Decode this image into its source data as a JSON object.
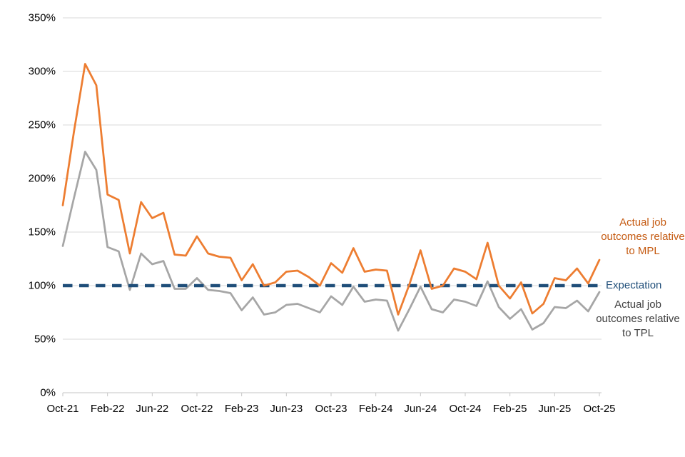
{
  "chart_data": {
    "type": "line",
    "x": [
      "Oct-21",
      "Nov-21",
      "Dec-21",
      "Jan-22",
      "Feb-22",
      "Mar-22",
      "Apr-22",
      "May-22",
      "Jun-22",
      "Jul-22",
      "Aug-22",
      "Sep-22",
      "Oct-22",
      "Nov-22",
      "Dec-22",
      "Jan-23",
      "Feb-23",
      "Mar-23",
      "Apr-23",
      "May-23",
      "Jun-23",
      "Jul-23",
      "Aug-23",
      "Sep-23",
      "Oct-23",
      "Nov-23",
      "Dec-23",
      "Jan-24",
      "Feb-24",
      "Mar-24",
      "Apr-24",
      "May-24",
      "Jun-24",
      "Jul-24",
      "Aug-24",
      "Sep-24",
      "Oct-24",
      "Nov-24",
      "Dec-24",
      "Jan-25",
      "Feb-25",
      "Mar-25",
      "Apr-25",
      "May-25",
      "Jun-25",
      "Jul-25",
      "Aug-25",
      "Sep-25",
      "Oct-25"
    ],
    "xtick_labels": [
      "Oct-21",
      "Feb-22",
      "Jun-22",
      "Oct-22",
      "Feb-23",
      "Jun-23",
      "Oct-23",
      "Feb-24",
      "Jun-24",
      "Oct-24",
      "Feb-25",
      "Jun-25",
      "Oct-25"
    ],
    "xtick_every": 4,
    "series": [
      {
        "name": "Actual job outcomes relative to MPL",
        "color": "#ED7D31",
        "style": "solid",
        "values": [
          175,
          244,
          307,
          287,
          185,
          180,
          130,
          178,
          163,
          168,
          129,
          128,
          146,
          130,
          127,
          126,
          105,
          120,
          100,
          103,
          113,
          114,
          108,
          100,
          121,
          112,
          135,
          113,
          115,
          114,
          73,
          101,
          133,
          97,
          100,
          116,
          113,
          106,
          140,
          100,
          88,
          103,
          74,
          83,
          107,
          105,
          116,
          102,
          124
        ]
      },
      {
        "name": "Actual job outcomes relative to TPL",
        "color": "#A6A6A6",
        "style": "solid",
        "values": [
          137,
          182,
          225,
          208,
          136,
          132,
          96,
          130,
          120,
          123,
          97,
          97,
          107,
          96,
          95,
          93,
          77,
          89,
          73,
          75,
          82,
          83,
          79,
          75,
          90,
          82,
          99,
          85,
          87,
          86,
          58,
          78,
          99,
          78,
          75,
          87,
          85,
          81,
          104,
          80,
          69,
          78,
          59,
          65,
          80,
          79,
          86,
          76,
          94
        ]
      },
      {
        "name": "Expectation",
        "color": "#1F4E79",
        "style": "dashed",
        "constant_value": 100
      }
    ],
    "title": "",
    "xlabel": "",
    "ylabel": "",
    "ylim": [
      0,
      350
    ],
    "ytick_step": 50,
    "ytick_suffix": "%",
    "grid": "horizontal-only",
    "legend_position": "right-annotations"
  },
  "annotations": {
    "mpl_label": "Actual job outcomes relative to MPL",
    "expectation_label": "Expectation",
    "tpl_label": "Actual job outcomes relative to TPL"
  },
  "colors": {
    "mpl_line": "#ED7D31",
    "tpl_line": "#A6A6A6",
    "expectation_line": "#1F4E79",
    "mpl_label_text": "#C55A11",
    "expectation_label_text": "#1F4E79",
    "tpl_label_text": "#404040",
    "gridline": "#D9D9D9",
    "axis_line": "#C6C6C6",
    "tick_label_text": "#000000",
    "background": "#FFFFFF"
  }
}
